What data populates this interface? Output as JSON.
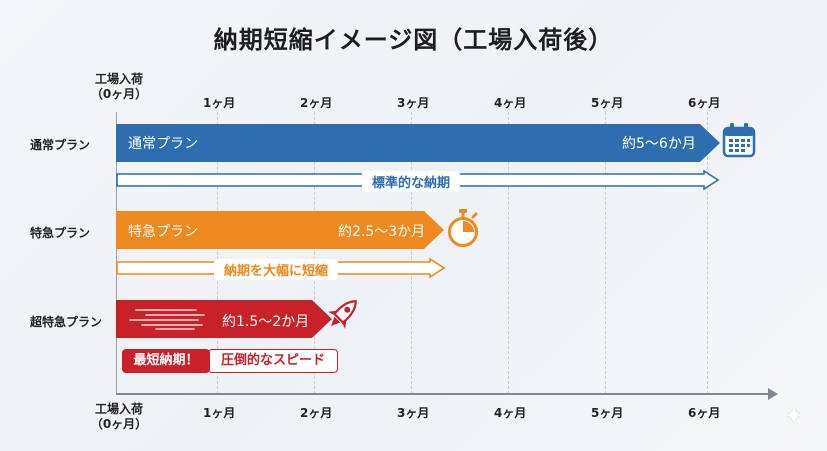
{
  "title": "納期短縮イメージ図（工場入荷後）",
  "axis": {
    "origin_line1": "工場入荷",
    "origin_line2": "（0ヶ月）",
    "months": [
      "1ヶ月",
      "2ヶ月",
      "3ヶ月",
      "4ヶ月",
      "5ヶ月",
      "6ヶ月"
    ]
  },
  "rows": {
    "normal": {
      "label": "通常プラン",
      "bar_label": "通常プラン",
      "duration": "約5〜6か月",
      "note": "標準的な納期",
      "color": "#2e6eb0",
      "icon": "calendar-icon"
    },
    "express": {
      "label": "特急プラン",
      "bar_label": "特急プラン",
      "duration": "約2.5〜3か月",
      "note": "納期を大幅に短縮",
      "color": "#ee8a1f",
      "icon": "stopwatch-icon"
    },
    "super": {
      "label": "超特急プラン",
      "duration": "約1.5〜2か月",
      "badge_left": "最短納期！",
      "badge_right": "圧倒的なスピード",
      "color": "#c9212a",
      "icon": "rocket-icon"
    }
  },
  "chart_data": {
    "type": "bar",
    "orientation": "horizontal",
    "title": "納期短縮イメージ図（工場入荷後）",
    "x_ticks": [
      "（0ヶ月）",
      "1ヶ月",
      "2ヶ月",
      "3ヶ月",
      "4ヶ月",
      "5ヶ月",
      "6ヶ月"
    ],
    "xlim": [
      0,
      6.6
    ],
    "categories": [
      "通常プラン",
      "特急プラン",
      "超特急プラン"
    ],
    "series": [
      {
        "name": "",
        "values": [
          6.0,
          3.0,
          2.0
        ]
      }
    ],
    "value_labels": [
      "約5〜6か月",
      "約2.5〜3か月",
      "約1.5〜2か月"
    ]
  }
}
